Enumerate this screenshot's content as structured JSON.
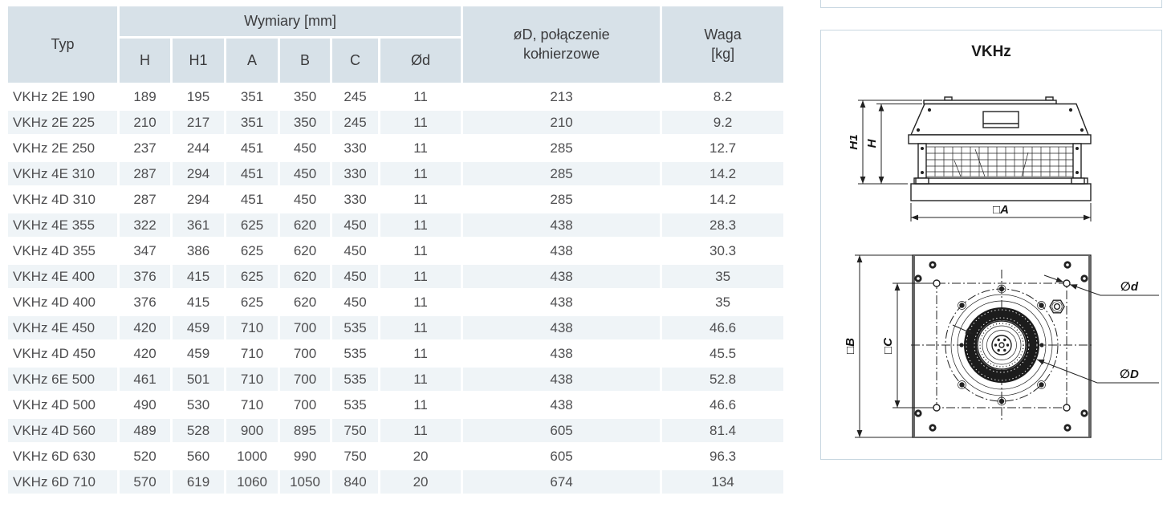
{
  "table": {
    "header": {
      "typ": "Typ",
      "wymiary": "Wymiary [mm]",
      "dims": [
        "H",
        "H1",
        "A",
        "B",
        "C",
        "Ød"
      ],
      "flange_line1": "øD, połączenie",
      "flange_line2": "kołnierzowe",
      "waga_line1": "Waga",
      "waga_line2": "[kg]"
    },
    "rows": [
      [
        "VKHz 2E 190",
        "189",
        "195",
        "351",
        "350",
        "245",
        "11",
        "213",
        "8.2"
      ],
      [
        "VKHz 2E 225",
        "210",
        "217",
        "351",
        "350",
        "245",
        "11",
        "210",
        "9.2"
      ],
      [
        "VKHz 2E 250",
        "237",
        "244",
        "451",
        "450",
        "330",
        "11",
        "285",
        "12.7"
      ],
      [
        "VKHz 4E 310",
        "287",
        "294",
        "451",
        "450",
        "330",
        "11",
        "285",
        "14.2"
      ],
      [
        "VKHz 4D 310",
        "287",
        "294",
        "451",
        "450",
        "330",
        "11",
        "285",
        "14.2"
      ],
      [
        "VKHz 4E 355",
        "322",
        "361",
        "625",
        "620",
        "450",
        "11",
        "438",
        "28.3"
      ],
      [
        "VKHz 4D 355",
        "347",
        "386",
        "625",
        "620",
        "450",
        "11",
        "438",
        "30.3"
      ],
      [
        "VKHz 4E 400",
        "376",
        "415",
        "625",
        "620",
        "450",
        "11",
        "438",
        "35"
      ],
      [
        "VKHz 4D 400",
        "376",
        "415",
        "625",
        "620",
        "450",
        "11",
        "438",
        "35"
      ],
      [
        "VKHz 4E 450",
        "420",
        "459",
        "710",
        "700",
        "535",
        "11",
        "438",
        "46.6"
      ],
      [
        "VKHz 4D 450",
        "420",
        "459",
        "710",
        "700",
        "535",
        "11",
        "438",
        "45.5"
      ],
      [
        "VKHz 6E 500",
        "461",
        "501",
        "710",
        "700",
        "535",
        "11",
        "438",
        "52.8"
      ],
      [
        "VKHz 4D 500",
        "490",
        "530",
        "710",
        "700",
        "535",
        "11",
        "438",
        "46.6"
      ],
      [
        "VKHz 4D 560",
        "489",
        "528",
        "900",
        "895",
        "750",
        "11",
        "605",
        "81.4"
      ],
      [
        "VKHz 6D 630",
        "520",
        "560",
        "1000",
        "990",
        "750",
        "20",
        "605",
        "96.3"
      ],
      [
        "VKHz 6D 710",
        "570",
        "619",
        "1060",
        "1050",
        "840",
        "20",
        "674",
        "134"
      ]
    ]
  },
  "panel": {
    "title": "VKHz",
    "labels": {
      "h1": "H1",
      "h": "H",
      "a": "□A",
      "b": "□B",
      "c": "□C",
      "d_small": "∅d",
      "d_large": "∅D"
    }
  },
  "colors": {
    "header_bg": "#d7e1e8",
    "row_alt_bg": "#eff4f7",
    "panel_border": "#c8d7e1",
    "text": "#4e4e50",
    "drawing_line": "#222222"
  }
}
